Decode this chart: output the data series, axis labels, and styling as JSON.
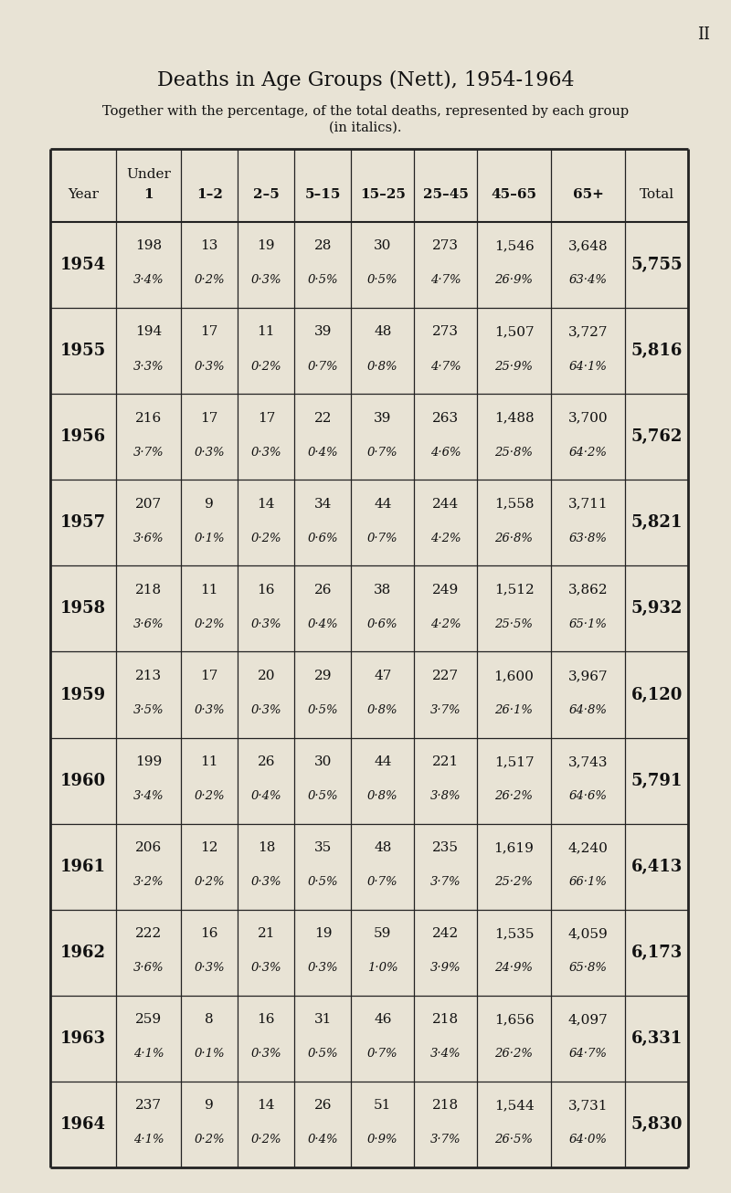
{
  "title": "Deaths in Age Groups (Nett), 1954-1964",
  "subtitle": "Together with the percentage, of the total deaths, represented by each group\n(in italics).",
  "page_number": "II",
  "bg_color": "#e8e3d5",
  "columns": [
    "Year",
    "Under\n1",
    "1–2",
    "2–5",
    "5–15",
    "15–25",
    "25–45",
    "45–65",
    "65+",
    "Total"
  ],
  "rows": [
    {
      "year": "1954",
      "counts": [
        "198",
        "13",
        "19",
        "28",
        "30",
        "273",
        "1,546",
        "3,648"
      ],
      "pcts": [
        "3·4%",
        "0·2%",
        "0·3%",
        "0·5%",
        "0·5%",
        "4·7%",
        "26·9%",
        "63·4%"
      ],
      "total": "5,755"
    },
    {
      "year": "1955",
      "counts": [
        "194",
        "17",
        "11",
        "39",
        "48",
        "273",
        "1,507",
        "3,727"
      ],
      "pcts": [
        "3·3%",
        "0·3%",
        "0·2%",
        "0·7%",
        "0·8%",
        "4·7%",
        "25·9%",
        "64·1%"
      ],
      "total": "5,816"
    },
    {
      "year": "1956",
      "counts": [
        "216",
        "17",
        "17",
        "22",
        "39",
        "263",
        "1,488",
        "3,700"
      ],
      "pcts": [
        "3·7%",
        "0·3%",
        "0·3%",
        "0·4%",
        "0·7%",
        "4·6%",
        "25·8%",
        "64·2%"
      ],
      "total": "5,762"
    },
    {
      "year": "1957",
      "counts": [
        "207",
        "9",
        "14",
        "34",
        "44",
        "244",
        "1,558",
        "3,711"
      ],
      "pcts": [
        "3·6%",
        "0·1%",
        "0·2%",
        "0·6%",
        "0·7%",
        "4·2%",
        "26·8%",
        "63·8%"
      ],
      "total": "5,821"
    },
    {
      "year": "1958",
      "counts": [
        "218",
        "11",
        "16",
        "26",
        "38",
        "249",
        "1,512",
        "3,862"
      ],
      "pcts": [
        "3·6%",
        "0·2%",
        "0·3%",
        "0·4%",
        "0·6%",
        "4·2%",
        "25·5%",
        "65·1%"
      ],
      "total": "5,932"
    },
    {
      "year": "1959",
      "counts": [
        "213",
        "17",
        "20",
        "29",
        "47",
        "227",
        "1,600",
        "3,967"
      ],
      "pcts": [
        "3·5%",
        "0·3%",
        "0·3%",
        "0·5%",
        "0·8%",
        "3·7%",
        "26·1%",
        "64·8%"
      ],
      "total": "6,120"
    },
    {
      "year": "1960",
      "counts": [
        "199",
        "11",
        "26",
        "30",
        "44",
        "221",
        "1,517",
        "3,743"
      ],
      "pcts": [
        "3·4%",
        "0·2%",
        "0·4%",
        "0·5%",
        "0·8%",
        "3·8%",
        "26·2%",
        "64·6%"
      ],
      "total": "5,791"
    },
    {
      "year": "1961",
      "counts": [
        "206",
        "12",
        "18",
        "35",
        "48",
        "235",
        "1,619",
        "4,240"
      ],
      "pcts": [
        "3·2%",
        "0·2%",
        "0·3%",
        "0·5%",
        "0·7%",
        "3·7%",
        "25·2%",
        "66·1%"
      ],
      "total": "6,413"
    },
    {
      "year": "1962",
      "counts": [
        "222",
        "16",
        "21",
        "19",
        "59",
        "242",
        "1,535",
        "4,059"
      ],
      "pcts": [
        "3·6%",
        "0·3%",
        "0·3%",
        "0·3%",
        "1·0%",
        "3·9%",
        "24·9%",
        "65·8%"
      ],
      "total": "6,173"
    },
    {
      "year": "1963",
      "counts": [
        "259",
        "8",
        "16",
        "31",
        "46",
        "218",
        "1,656",
        "4,097"
      ],
      "pcts": [
        "4·1%",
        "0·1%",
        "0·3%",
        "0·5%",
        "0·7%",
        "3·4%",
        "26·2%",
        "64·7%"
      ],
      "total": "6,331"
    },
    {
      "year": "1964",
      "counts": [
        "237",
        "9",
        "14",
        "26",
        "51",
        "218",
        "1,544",
        "3,731"
      ],
      "pcts": [
        "4·1%",
        "0·2%",
        "0·2%",
        "0·4%",
        "0·9%",
        "3·7%",
        "26·5%",
        "64·0%"
      ],
      "total": "5,830"
    }
  ],
  "title_fontsize": 16,
  "subtitle_fontsize": 10.5,
  "header_fontsize": 11,
  "count_fontsize": 11,
  "pct_fontsize": 9.5,
  "year_fontsize": 13,
  "total_fontsize": 13,
  "page_num_fontsize": 13
}
